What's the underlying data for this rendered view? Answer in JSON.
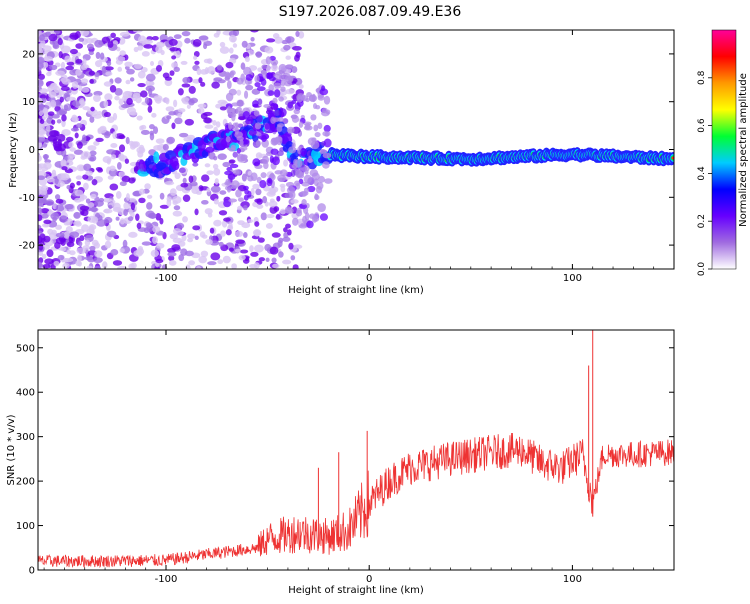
{
  "title": "S197.2026.087.09.49.E36",
  "colors": {
    "line": "#ee3333",
    "axis": "#000000",
    "cb_stops": [
      "#ffffff",
      "#a06be0",
      "#6600ff",
      "#0000ff",
      "#00ccff",
      "#00ff33",
      "#ffff00",
      "#ff9900",
      "#ff0000",
      "#ff0099"
    ]
  },
  "chart_data": [
    {
      "type": "heatmap",
      "title": "S197.2026.087.09.49.E36",
      "xlabel": "Height of straight line (km)",
      "ylabel": "Frequency (Hz)",
      "xlim": [
        -163,
        150
      ],
      "ylim": [
        -25,
        25
      ],
      "x_ticks": [
        "-100",
        "0",
        "100"
      ],
      "y_ticks": [
        "20",
        "10",
        "0",
        "-10",
        "-20"
      ],
      "colorbar": {
        "label": "Normalized spectral amplitude",
        "range": [
          0,
          1
        ],
        "ticks": [
          "0.0",
          "0.2",
          "0.4",
          "0.6",
          "0.8"
        ]
      },
      "ridge": {
        "description_points": [
          {
            "x": -110,
            "y": -4
          },
          {
            "x": -100,
            "y": -3
          },
          {
            "x": -90,
            "y": -1
          },
          {
            "x": -80,
            "y": 1
          },
          {
            "x": -70,
            "y": 2
          },
          {
            "x": -55,
            "y": 4
          },
          {
            "x": -45,
            "y": 6
          },
          {
            "x": -35,
            "y": -3
          },
          {
            "x": -25,
            "y": -1
          },
          {
            "x": 0,
            "y": -1.5
          },
          {
            "x": 50,
            "y": -2
          },
          {
            "x": 100,
            "y": -1
          },
          {
            "x": 150,
            "y": -2
          }
        ]
      }
    },
    {
      "type": "line",
      "xlabel": "Height of straight line (km)",
      "ylabel": "SNR (10 * v/v)",
      "xlim": [
        -163,
        150
      ],
      "ylim": [
        0,
        540
      ],
      "x_ticks": [
        "-100",
        "0",
        "100"
      ],
      "y_ticks": [
        "0",
        "100",
        "200",
        "300",
        "400",
        "500"
      ],
      "trend": [
        {
          "x": -163,
          "y": 20
        },
        {
          "x": -130,
          "y": 20
        },
        {
          "x": -100,
          "y": 22
        },
        {
          "x": -80,
          "y": 35
        },
        {
          "x": -55,
          "y": 50
        },
        {
          "x": -50,
          "y": 70
        },
        {
          "x": -35,
          "y": 85
        },
        {
          "x": -20,
          "y": 75
        },
        {
          "x": -10,
          "y": 90
        },
        {
          "x": 0,
          "y": 150
        },
        {
          "x": 10,
          "y": 200
        },
        {
          "x": 20,
          "y": 230
        },
        {
          "x": 40,
          "y": 250
        },
        {
          "x": 60,
          "y": 265
        },
        {
          "x": 75,
          "y": 270
        },
        {
          "x": 85,
          "y": 240
        },
        {
          "x": 95,
          "y": 230
        },
        {
          "x": 105,
          "y": 260
        },
        {
          "x": 110,
          "y": 150
        },
        {
          "x": 115,
          "y": 260
        },
        {
          "x": 130,
          "y": 260
        },
        {
          "x": 150,
          "y": 265
        }
      ],
      "spikes": [
        {
          "x": -1,
          "y": 313
        },
        {
          "x": -15,
          "y": 265
        },
        {
          "x": -25,
          "y": 230
        },
        {
          "x": 108,
          "y": 460
        },
        {
          "x": 110,
          "y": 540
        }
      ]
    }
  ]
}
